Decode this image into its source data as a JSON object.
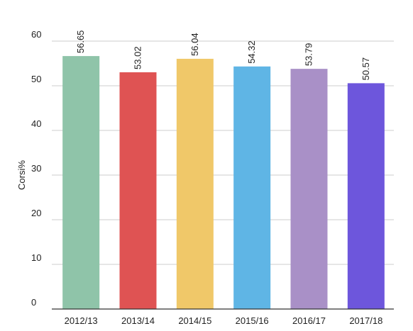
{
  "chart_data": {
    "type": "bar",
    "categories": [
      "2012/13",
      "2013/14",
      "2014/15",
      "2015/16",
      "2016/17",
      "2017/18"
    ],
    "values": [
      56.65,
      53.02,
      56.04,
      54.32,
      53.79,
      50.57
    ],
    "data_labels": [
      "56.65",
      "53.02",
      "56.04",
      "54.32",
      "53.79",
      "50.57"
    ],
    "colors": [
      "#8fc4a9",
      "#df5353",
      "#f0c869",
      "#5fb5e5",
      "#a990c7",
      "#6d56dc"
    ],
    "title": "",
    "xlabel": "",
    "ylabel": "Corsi%",
    "ylim": [
      0,
      60
    ],
    "yticks": [
      0,
      10,
      20,
      30,
      40,
      50,
      60
    ],
    "grid": true,
    "legend": "none"
  }
}
